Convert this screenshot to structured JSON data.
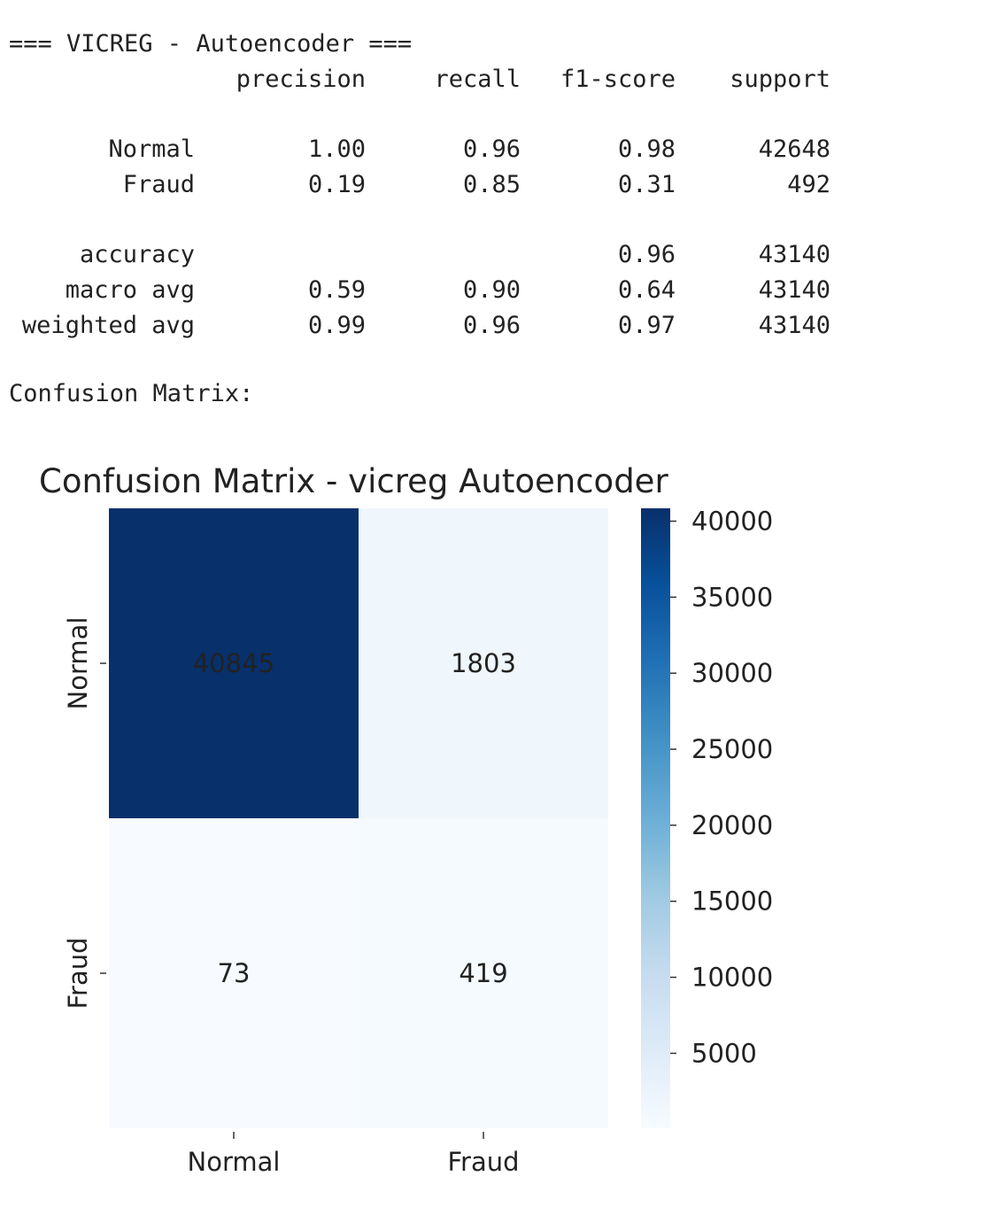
{
  "report": {
    "heading": "=== VICREG - Autoencoder ===",
    "columns": [
      "precision",
      "recall",
      "f1-score",
      "support"
    ],
    "rows": [
      {
        "label": "Normal",
        "cells": [
          "1.00",
          "0.96",
          "0.98",
          "42648"
        ]
      },
      {
        "label": "Fraud",
        "cells": [
          "0.19",
          "0.85",
          "0.31",
          "492"
        ]
      },
      {
        "label": "accuracy",
        "cells": [
          null,
          null,
          "0.96",
          "43140"
        ]
      },
      {
        "label": "macro avg",
        "cells": [
          "0.59",
          "0.90",
          "0.64",
          "43140"
        ]
      },
      {
        "label": "weighted avg",
        "cells": [
          "0.99",
          "0.96",
          "0.97",
          "43140"
        ]
      }
    ],
    "footer": "Confusion Matrix:"
  },
  "chart_data": {
    "type": "heatmap",
    "title": "Confusion Matrix - vicreg Autoencoder",
    "x_categories": [
      "Normal",
      "Fraud"
    ],
    "y_categories": [
      "Normal",
      "Fraud"
    ],
    "values": [
      [
        40845,
        1803
      ],
      [
        73,
        419
      ]
    ],
    "colormap": [
      "#f7fbff",
      "#deebf7",
      "#c6dbef",
      "#9ecae1",
      "#6baed6",
      "#4292c6",
      "#2171b5",
      "#08519c",
      "#08306b"
    ],
    "clim": [
      73,
      40845
    ],
    "cticks": [
      5000,
      10000,
      15000,
      20000,
      25000,
      30000,
      35000,
      40000
    ]
  }
}
